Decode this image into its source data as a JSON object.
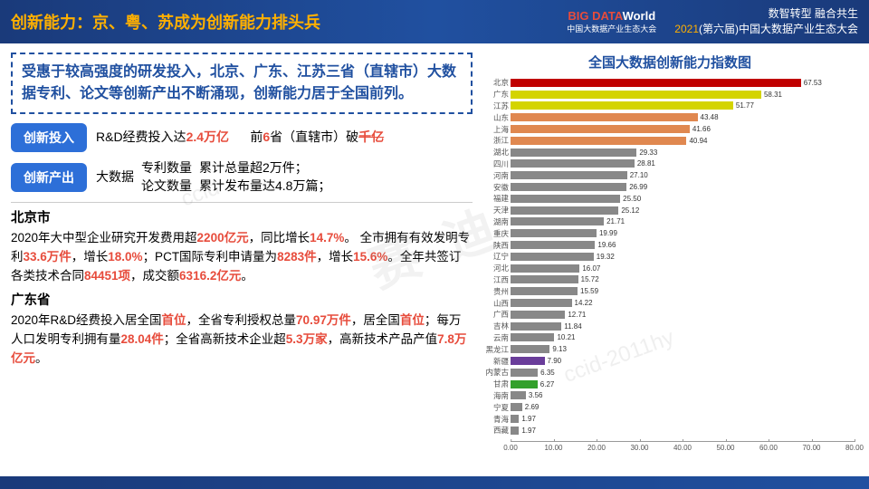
{
  "header": {
    "title": "创新能力：京、粤、苏成为创新能力排头兵",
    "logo_main_big": "BIG DATA",
    "logo_main_world": "World",
    "logo_sub": "中国大数据产业生态大会",
    "tagline1": "数智转型 融合共生",
    "tagline2_year": "2021",
    "tagline2_rest": "(第六届)中国大数据产业生态大会"
  },
  "quote": "受惠于较高强度的研发投入，北京、广东、江苏三省（直辖市）大数据专利、论文等创新产出不断涌现，创新能力居于全国前列。",
  "pill1": {
    "label": "创新投入",
    "text1_a": "R&D经费投入达",
    "text1_b": "2.4万亿",
    "text2_a": "前",
    "text2_b": "6",
    "text2_c": "省（直辖市）破",
    "text2_d": "千亿"
  },
  "pill2": {
    "label": "创新产出",
    "left": "大数据",
    "r1a": "专利数量",
    "r1b": "累计总量超2万件；",
    "r2a": "论文数量",
    "r2b": "累计发布量达4.8万篇；"
  },
  "beijing": {
    "title": "北京市",
    "line1a": "2020年大中型企业研究开发费用超",
    "line1b": "2200亿元",
    "line1c": "，同比增长",
    "line1d": "14.7%",
    "line1e": "。",
    "line2a": "全市拥有有效发明专利",
    "line2b": "33.6万件",
    "line2c": "，增长",
    "line2d": "18.0%",
    "line2e": "；PCT国际专利申请量为",
    "line2f": "8283件",
    "line2g": "，增长",
    "line2h": "15.6%",
    "line2i": "。全年共签订各类技术合同",
    "line2j": "84451项",
    "line2k": "，成交额",
    "line2l": "6316.2亿元",
    "line2m": "。"
  },
  "guangdong": {
    "title": "广东省",
    "line1a": "2020年R&D经费投入居全国",
    "line1b": "首位",
    "line1c": "，全省专利授权总量",
    "line1d": "70.97万件",
    "line1e": "，居全国",
    "line1f": "首位",
    "line1g": "；每万人口发明专利拥有量",
    "line1h": "28.04件",
    "line1i": "；全省高新技术企业超",
    "line1j": "5.3万家",
    "line1k": "，高新技术产品产值",
    "line1l": "7.8万亿元",
    "line1m": "。"
  },
  "chart": {
    "title": "全国大数据创新能力指数图",
    "xmax": 80,
    "xtick_step": 10,
    "xticks": [
      "0.00",
      "10.00",
      "20.00",
      "30.00",
      "40.00",
      "50.00",
      "60.00",
      "70.00",
      "80.00"
    ],
    "background_color": "#ffffff",
    "label_fontsize": 8.5,
    "value_fontsize": 8,
    "bars": [
      {
        "label": "北京",
        "value": 67.53,
        "color": "#c00000"
      },
      {
        "label": "广东",
        "value": 58.31,
        "color": "#d4d400"
      },
      {
        "label": "江苏",
        "value": 51.77,
        "color": "#d4d400"
      },
      {
        "label": "山东",
        "value": 43.48,
        "color": "#e08850"
      },
      {
        "label": "上海",
        "value": 41.66,
        "color": "#e08850"
      },
      {
        "label": "浙江",
        "value": 40.94,
        "color": "#e08850"
      },
      {
        "label": "湖北",
        "value": 29.33,
        "color": "#888888"
      },
      {
        "label": "四川",
        "value": 28.81,
        "color": "#888888"
      },
      {
        "label": "河南",
        "value": 27.1,
        "color": "#888888"
      },
      {
        "label": "安徽",
        "value": 26.99,
        "color": "#888888"
      },
      {
        "label": "福建",
        "value": 25.5,
        "color": "#888888"
      },
      {
        "label": "天津",
        "value": 25.12,
        "color": "#888888"
      },
      {
        "label": "湖南",
        "value": 21.71,
        "color": "#888888"
      },
      {
        "label": "重庆",
        "value": 19.99,
        "color": "#888888"
      },
      {
        "label": "陕西",
        "value": 19.66,
        "color": "#888888"
      },
      {
        "label": "辽宁",
        "value": 19.32,
        "color": "#888888"
      },
      {
        "label": "河北",
        "value": 16.07,
        "color": "#888888"
      },
      {
        "label": "江西",
        "value": 15.72,
        "color": "#888888"
      },
      {
        "label": "贵州",
        "value": 15.59,
        "color": "#888888"
      },
      {
        "label": "山西",
        "value": 14.22,
        "color": "#888888"
      },
      {
        "label": "广西",
        "value": 12.71,
        "color": "#888888"
      },
      {
        "label": "吉林",
        "value": 11.84,
        "color": "#888888"
      },
      {
        "label": "云南",
        "value": 10.21,
        "color": "#888888"
      },
      {
        "label": "黑龙江",
        "value": 9.13,
        "color": "#888888"
      },
      {
        "label": "新疆",
        "value": 7.9,
        "color": "#6a3d9a"
      },
      {
        "label": "内蒙古",
        "value": 6.35,
        "color": "#888888"
      },
      {
        "label": "甘肃",
        "value": 6.27,
        "color": "#33a02c"
      },
      {
        "label": "海南",
        "value": 3.56,
        "color": "#888888"
      },
      {
        "label": "宁夏",
        "value": 2.69,
        "color": "#888888"
      },
      {
        "label": "青海",
        "value": 1.97,
        "color": "#888888"
      },
      {
        "label": "西藏",
        "value": 1.97,
        "color": "#888888"
      }
    ]
  },
  "watermark": "赛 迪",
  "wm_small1": "ccid",
  "wm_small2": "ccid-2011hy"
}
